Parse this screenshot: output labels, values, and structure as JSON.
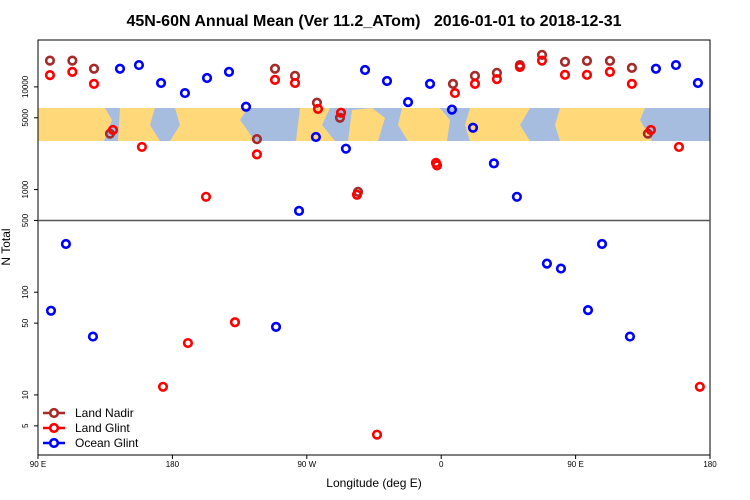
{
  "chart_data": {
    "type": "scatter",
    "title": "45N-60N Annual Mean (Ver 11.2_ATom)   2016-01-01 to 2018-12-31",
    "xlabel": "Longitude (deg E)",
    "ylabel": "N Total",
    "xlim": [
      90,
      540
    ],
    "xticks": [
      {
        "value": 90,
        "label": "90 E"
      },
      180,
      {
        "value": 270,
        "label": "90 W"
      },
      {
        "value": 360,
        "label": "0"
      },
      {
        "value": 450,
        "label": "90 E"
      },
      {
        "value": 540,
        "label": "180"
      }
    ],
    "ylim": [
      2.6,
      28600
    ],
    "log_y": true,
    "yticks": [
      5,
      10,
      50,
      100,
      500,
      1000,
      5000,
      10000
    ],
    "reference_line": 500,
    "legend": "bottom-left",
    "series": [
      {
        "name": "Land Nadir",
        "color": "#a52a2a",
        "x": [
          98,
          113,
          127.5,
          138.2,
          236.6,
          248.7,
          262.1,
          276.8,
          292.2,
          304.3,
          367.9,
          382.6,
          397.3,
          412.7,
          427.5,
          442.9,
          457.6,
          473,
          487.7,
          498.4
        ],
        "values": [
          18000,
          18000,
          15000,
          3500,
          3100,
          15000,
          12800,
          7000,
          5000,
          950,
          10700,
          12800,
          13700,
          16300,
          20500,
          17500,
          17900,
          17900,
          15300,
          3500
        ]
      },
      {
        "name": "Land Glint",
        "color": "#ff0000",
        "x": [
          98,
          113,
          127.5,
          140.2,
          159.6,
          173.7,
          190.4,
          202.5,
          221.9,
          236.6,
          248.7,
          262.1,
          277.5,
          292.9,
          303.6,
          317,
          356.5,
          357.2,
          369.2,
          382.6,
          397.3,
          412.7,
          427.5,
          442.9,
          457.6,
          473,
          487.7,
          500.4,
          519.2,
          533.2
        ],
        "values": [
          13000,
          14000,
          10700,
          3800,
          2600,
          12,
          32,
          850,
          51,
          2200,
          11700,
          10900,
          6100,
          5600,
          890,
          4.1,
          1820,
          1720,
          8700,
          10700,
          11900,
          15600,
          18000,
          13100,
          13100,
          14000,
          10700,
          3800,
          2600,
          12
        ]
      },
      {
        "name": "Ocean Glint",
        "color": "#0000ff",
        "x": [
          98.7,
          108.7,
          126.8,
          144.9,
          157.6,
          172.4,
          188.4,
          203.2,
          217.9,
          229.3,
          249.4,
          264.8,
          276.1,
          296.2,
          309,
          323.7,
          337.8,
          352.5,
          367.2,
          381.3,
          395.3,
          410.7,
          430.8,
          440.2,
          458.3,
          467.7,
          486.4,
          503.8,
          517.2,
          531.9
        ],
        "values": [
          66,
          295,
          37,
          15000,
          16300,
          10900,
          8700,
          12200,
          14000,
          6400,
          46,
          620,
          3250,
          2500,
          14600,
          11400,
          7100,
          10700,
          6000,
          4000,
          1800,
          850,
          190,
          170,
          67,
          295,
          37,
          15000,
          16300,
          10900
        ]
      }
    ]
  }
}
